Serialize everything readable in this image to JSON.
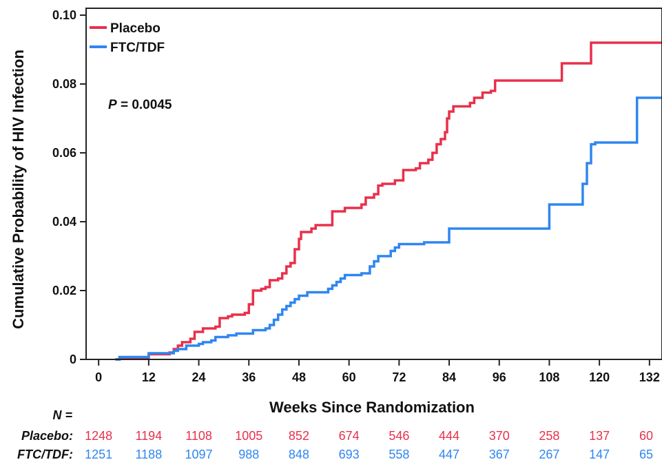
{
  "chart_data": {
    "type": "line",
    "step": true,
    "xlabel": "Weeks Since Randomization",
    "ylabel": "Cumulative Probability of HIV Infection",
    "xlim": [
      -3,
      135
    ],
    "ylim": [
      0,
      0.1
    ],
    "x_ticks": [
      "0",
      "12",
      "24",
      "36",
      "48",
      "60",
      "72",
      "84",
      "96",
      "108",
      "120",
      "132"
    ],
    "y_ticks": [
      "0",
      "0.02",
      "0.04",
      "0.06",
      "0.08",
      "0.10"
    ],
    "annotation": {
      "italic": "P",
      "text": " = 0.0045"
    },
    "legend_position": "top-left",
    "series": [
      {
        "name": "Placebo",
        "color": "#e8304a",
        "points": [
          [
            4,
            0
          ],
          [
            5,
            0.0005
          ],
          [
            12,
            0.0015
          ],
          [
            17,
            0.002
          ],
          [
            18,
            0.003
          ],
          [
            19,
            0.004
          ],
          [
            20,
            0.005
          ],
          [
            22,
            0.006
          ],
          [
            23,
            0.008
          ],
          [
            25,
            0.009
          ],
          [
            28,
            0.0095
          ],
          [
            29,
            0.012
          ],
          [
            31,
            0.0125
          ],
          [
            32,
            0.013
          ],
          [
            35,
            0.0135
          ],
          [
            36,
            0.016
          ],
          [
            37,
            0.02
          ],
          [
            39,
            0.0205
          ],
          [
            40,
            0.021
          ],
          [
            41,
            0.023
          ],
          [
            43,
            0.0235
          ],
          [
            44,
            0.025
          ],
          [
            45,
            0.027
          ],
          [
            46,
            0.028
          ],
          [
            47,
            0.032
          ],
          [
            48,
            0.035
          ],
          [
            48.5,
            0.037
          ],
          [
            51,
            0.038
          ],
          [
            52,
            0.039
          ],
          [
            56,
            0.043
          ],
          [
            59,
            0.044
          ],
          [
            63,
            0.045
          ],
          [
            64,
            0.047
          ],
          [
            66,
            0.048
          ],
          [
            67,
            0.0505
          ],
          [
            68,
            0.051
          ],
          [
            71,
            0.052
          ],
          [
            73,
            0.055
          ],
          [
            76,
            0.0555
          ],
          [
            77,
            0.057
          ],
          [
            79,
            0.058
          ],
          [
            80,
            0.06
          ],
          [
            81,
            0.0625
          ],
          [
            82,
            0.064
          ],
          [
            83,
            0.066
          ],
          [
            83.5,
            0.07
          ],
          [
            84,
            0.072
          ],
          [
            85,
            0.0735
          ],
          [
            89,
            0.0745
          ],
          [
            90,
            0.076
          ],
          [
            92,
            0.0775
          ],
          [
            94,
            0.078
          ],
          [
            95,
            0.081
          ],
          [
            111,
            0.086
          ],
          [
            114,
            0.086
          ],
          [
            118,
            0.092
          ],
          [
            135,
            0.092
          ]
        ]
      },
      {
        "name": "FTC/TDF",
        "color": "#2e86f0",
        "points": [
          [
            4,
            0
          ],
          [
            5,
            0.0007
          ],
          [
            12,
            0.0018
          ],
          [
            18,
            0.0025
          ],
          [
            19,
            0.003
          ],
          [
            21,
            0.004
          ],
          [
            24,
            0.0045
          ],
          [
            25,
            0.005
          ],
          [
            27,
            0.0055
          ],
          [
            28,
            0.0065
          ],
          [
            31,
            0.007
          ],
          [
            33,
            0.0075
          ],
          [
            37,
            0.0085
          ],
          [
            40,
            0.009
          ],
          [
            41,
            0.01
          ],
          [
            42,
            0.0115
          ],
          [
            43,
            0.013
          ],
          [
            44,
            0.0145
          ],
          [
            45,
            0.0155
          ],
          [
            46,
            0.0165
          ],
          [
            47,
            0.0175
          ],
          [
            48,
            0.0185
          ],
          [
            50,
            0.0195
          ],
          [
            55,
            0.0205
          ],
          [
            56,
            0.0215
          ],
          [
            57,
            0.0225
          ],
          [
            58,
            0.0235
          ],
          [
            59,
            0.0245
          ],
          [
            63,
            0.025
          ],
          [
            65,
            0.027
          ],
          [
            66,
            0.0285
          ],
          [
            67,
            0.03
          ],
          [
            70,
            0.0315
          ],
          [
            71,
            0.0325
          ],
          [
            72,
            0.0335
          ],
          [
            78,
            0.034
          ],
          [
            84,
            0.038
          ],
          [
            108,
            0.045
          ],
          [
            115,
            0.045
          ],
          [
            116,
            0.051
          ],
          [
            117,
            0.057
          ],
          [
            118,
            0.0625
          ],
          [
            119,
            0.063
          ],
          [
            124,
            0.063
          ],
          [
            129,
            0.076
          ],
          [
            135,
            0.076
          ]
        ]
      }
    ],
    "risk_table": {
      "header": "N =",
      "groups": [
        {
          "label": "Placebo:",
          "color": "#e8304a",
          "values": [
            "1248",
            "1194",
            "1108",
            "1005",
            "852",
            "674",
            "546",
            "444",
            "370",
            "258",
            "137",
            "60"
          ]
        },
        {
          "label": "FTC/TDF:",
          "color": "#2e86f0",
          "values": [
            "1251",
            "1188",
            "1097",
            "988",
            "848",
            "693",
            "558",
            "447",
            "367",
            "267",
            "147",
            "65"
          ]
        }
      ]
    }
  }
}
